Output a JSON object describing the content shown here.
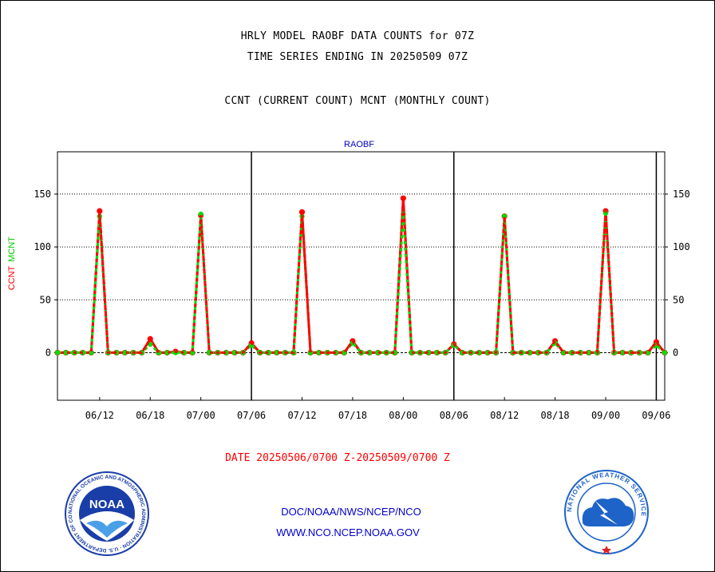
{
  "header": {
    "title1": "HRLY MODEL RAOBF DATA COUNTS for 07Z",
    "title2": "TIME SERIES ENDING IN 20250509 07Z",
    "title3": "CCNT (CURRENT COUNT) MCNT (MONTHLY COUNT)"
  },
  "footer": {
    "date_range": "DATE 20250506/0700 Z-20250509/0700 Z",
    "org": "DOC/NOAA/NWS/NCEP/NCO",
    "url": "WWW.NCO.NCEP.NOAA.GOV"
  },
  "logos": {
    "noaa_text": "NOAA",
    "noaa_ring": "NATIONAL OCEANIC AND ATMOSPHERIC ADMINISTRATION · U.S. DEPARTMENT OF COMMERCE ·",
    "nws_ring": "NATIONAL WEATHER SERVICE"
  },
  "colors": {
    "ccnt": "#ff0000",
    "mcnt": "#00dd00",
    "title": "#000000",
    "footer_red": "#ff0000",
    "footer_blue": "#0000cc",
    "noaa_blue": "#1a3ea8",
    "nws_blue": "#1e63c8"
  },
  "chart_data": {
    "type": "line",
    "plot_label": "RAOBF",
    "ylabel_ccnt": "CCNT",
    "ylabel_mcnt": "MCNT",
    "ylim": [
      -45,
      190
    ],
    "xlim": [
      0,
      72
    ],
    "y_ticks": [
      0,
      50,
      100,
      150
    ],
    "y_tick_labels": [
      "0",
      "50",
      "100",
      "150"
    ],
    "x_ticks": [
      5,
      11,
      17,
      23,
      29,
      35,
      41,
      47,
      53,
      59,
      65,
      71
    ],
    "x_tick_labels": [
      "06/12",
      "06/18",
      "07/00",
      "07/06",
      "07/12",
      "07/18",
      "08/00",
      "08/06",
      "08/12",
      "08/18",
      "09/00",
      "09/06"
    ],
    "day_boundaries": [
      23,
      47,
      71
    ],
    "grid": "horizontal",
    "series": [
      {
        "name": "CCNT",
        "color": "#ff0000",
        "x": [
          0,
          1,
          2,
          3,
          4,
          5,
          6,
          7,
          8,
          9,
          10,
          11,
          12,
          13,
          14,
          15,
          16,
          17,
          18,
          19,
          20,
          21,
          22,
          23,
          24,
          25,
          26,
          27,
          28,
          29,
          30,
          31,
          32,
          33,
          34,
          35,
          36,
          37,
          38,
          39,
          40,
          41,
          42,
          43,
          44,
          45,
          46,
          47,
          48,
          49,
          50,
          51,
          52,
          53,
          54,
          55,
          56,
          57,
          58,
          59,
          60,
          61,
          62,
          63,
          64,
          65,
          66,
          67,
          68,
          69,
          70,
          71,
          72
        ],
        "values": [
          0,
          0,
          0,
          0,
          0,
          134,
          0,
          0,
          0,
          0,
          0,
          13,
          0,
          0,
          1,
          0,
          0,
          130,
          0,
          0,
          0,
          0,
          0,
          9,
          0,
          0,
          0,
          0,
          0,
          133,
          0,
          0,
          0,
          0,
          0,
          11,
          0,
          0,
          0,
          0,
          0,
          146,
          0,
          0,
          0,
          0,
          0,
          8,
          0,
          0,
          0,
          0,
          0,
          129,
          0,
          0,
          0,
          0,
          0,
          11,
          0,
          0,
          0,
          0,
          0,
          134,
          0,
          0,
          0,
          0,
          0,
          10,
          0
        ]
      },
      {
        "name": "MCNT",
        "color": "#00dd00",
        "x": [
          0,
          1,
          2,
          3,
          4,
          5,
          6,
          7,
          8,
          9,
          10,
          11,
          12,
          13,
          14,
          15,
          16,
          17,
          18,
          19,
          20,
          21,
          22,
          23,
          24,
          25,
          26,
          27,
          28,
          29,
          30,
          31,
          32,
          33,
          34,
          35,
          36,
          37,
          38,
          39,
          40,
          41,
          42,
          43,
          44,
          45,
          46,
          47,
          48,
          49,
          50,
          51,
          52,
          53,
          54,
          55,
          56,
          57,
          58,
          59,
          60,
          61,
          62,
          63,
          64,
          65,
          66,
          67,
          68,
          69,
          70,
          71,
          72
        ],
        "values": [
          0,
          0,
          0,
          0,
          0,
          129,
          0,
          0,
          0,
          0,
          0,
          8,
          0,
          0,
          0,
          0,
          0,
          131,
          0,
          0,
          0,
          0,
          0,
          7,
          0,
          0,
          0,
          0,
          0,
          129,
          0,
          0,
          0,
          0,
          0,
          9,
          0,
          0,
          0,
          0,
          0,
          131,
          0,
          0,
          0,
          0,
          0,
          7,
          0,
          0,
          0,
          0,
          0,
          129,
          0,
          0,
          0,
          0,
          0,
          9,
          0,
          0,
          0,
          0,
          0,
          132,
          0,
          0,
          0,
          0,
          0,
          7,
          0
        ]
      }
    ]
  }
}
